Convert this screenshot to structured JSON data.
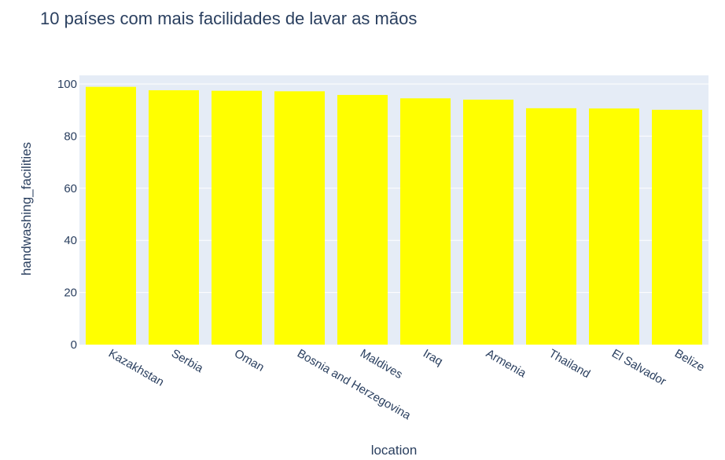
{
  "chart_data": {
    "type": "bar",
    "title": "10 países com mais facilidades de lavar as mãos",
    "xlabel": "location",
    "ylabel": "handwashing_facilities",
    "categories": [
      "Kazakhstan",
      "Serbia",
      "Oman",
      "Bosnia and Herzegovina",
      "Maldives",
      "Iraq",
      "Armenia",
      "Thailand",
      "El Salvador",
      "Belize"
    ],
    "values": [
      98.9,
      97.6,
      97.4,
      97.2,
      95.8,
      94.5,
      94.0,
      90.7,
      90.6,
      90.1
    ],
    "ylim": [
      0,
      100
    ],
    "yticks": [
      0,
      20,
      40,
      60,
      80,
      100
    ],
    "grid": true,
    "bar_color": "#ffff00",
    "plot_bg": "#e5ecf6",
    "text_color": "#2a3f5f"
  }
}
